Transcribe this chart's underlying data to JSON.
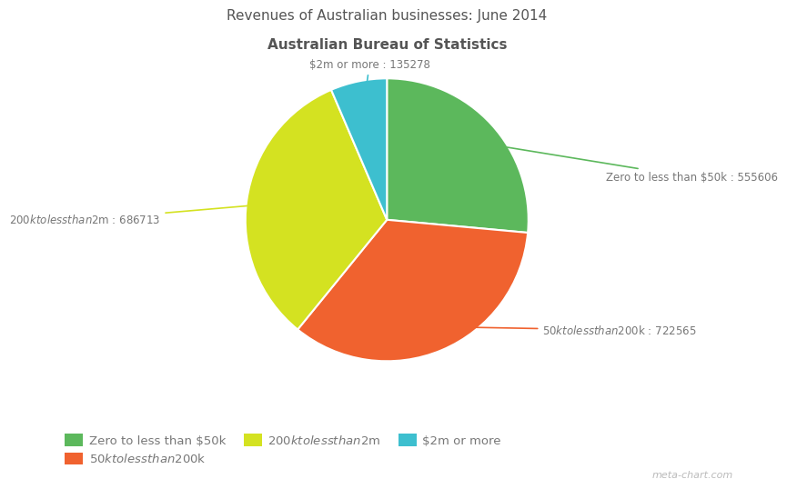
{
  "title_line1": "Revenues of Australian businesses: June 2014",
  "title_line2": "Australian Bureau of Statistics",
  "values": [
    555606,
    722565,
    686713,
    135278
  ],
  "colors": [
    "#5cb85c",
    "#f0622f",
    "#d4e221",
    "#3dbfcf"
  ],
  "label_texts": [
    "Zero to less than $50k : 555606",
    "$50k to less than $200k : 722565",
    "$200k to less than $2m : 686713",
    "$2m or more : 135278"
  ],
  "legend_labels": [
    "Zero to less than $50k",
    "$50k to less than $200k",
    "$200k to less than $2m",
    "$2m or more"
  ],
  "background_color": "#ffffff",
  "watermark": "meta-chart.com",
  "label_color": "#777777",
  "title_color": "#555555"
}
